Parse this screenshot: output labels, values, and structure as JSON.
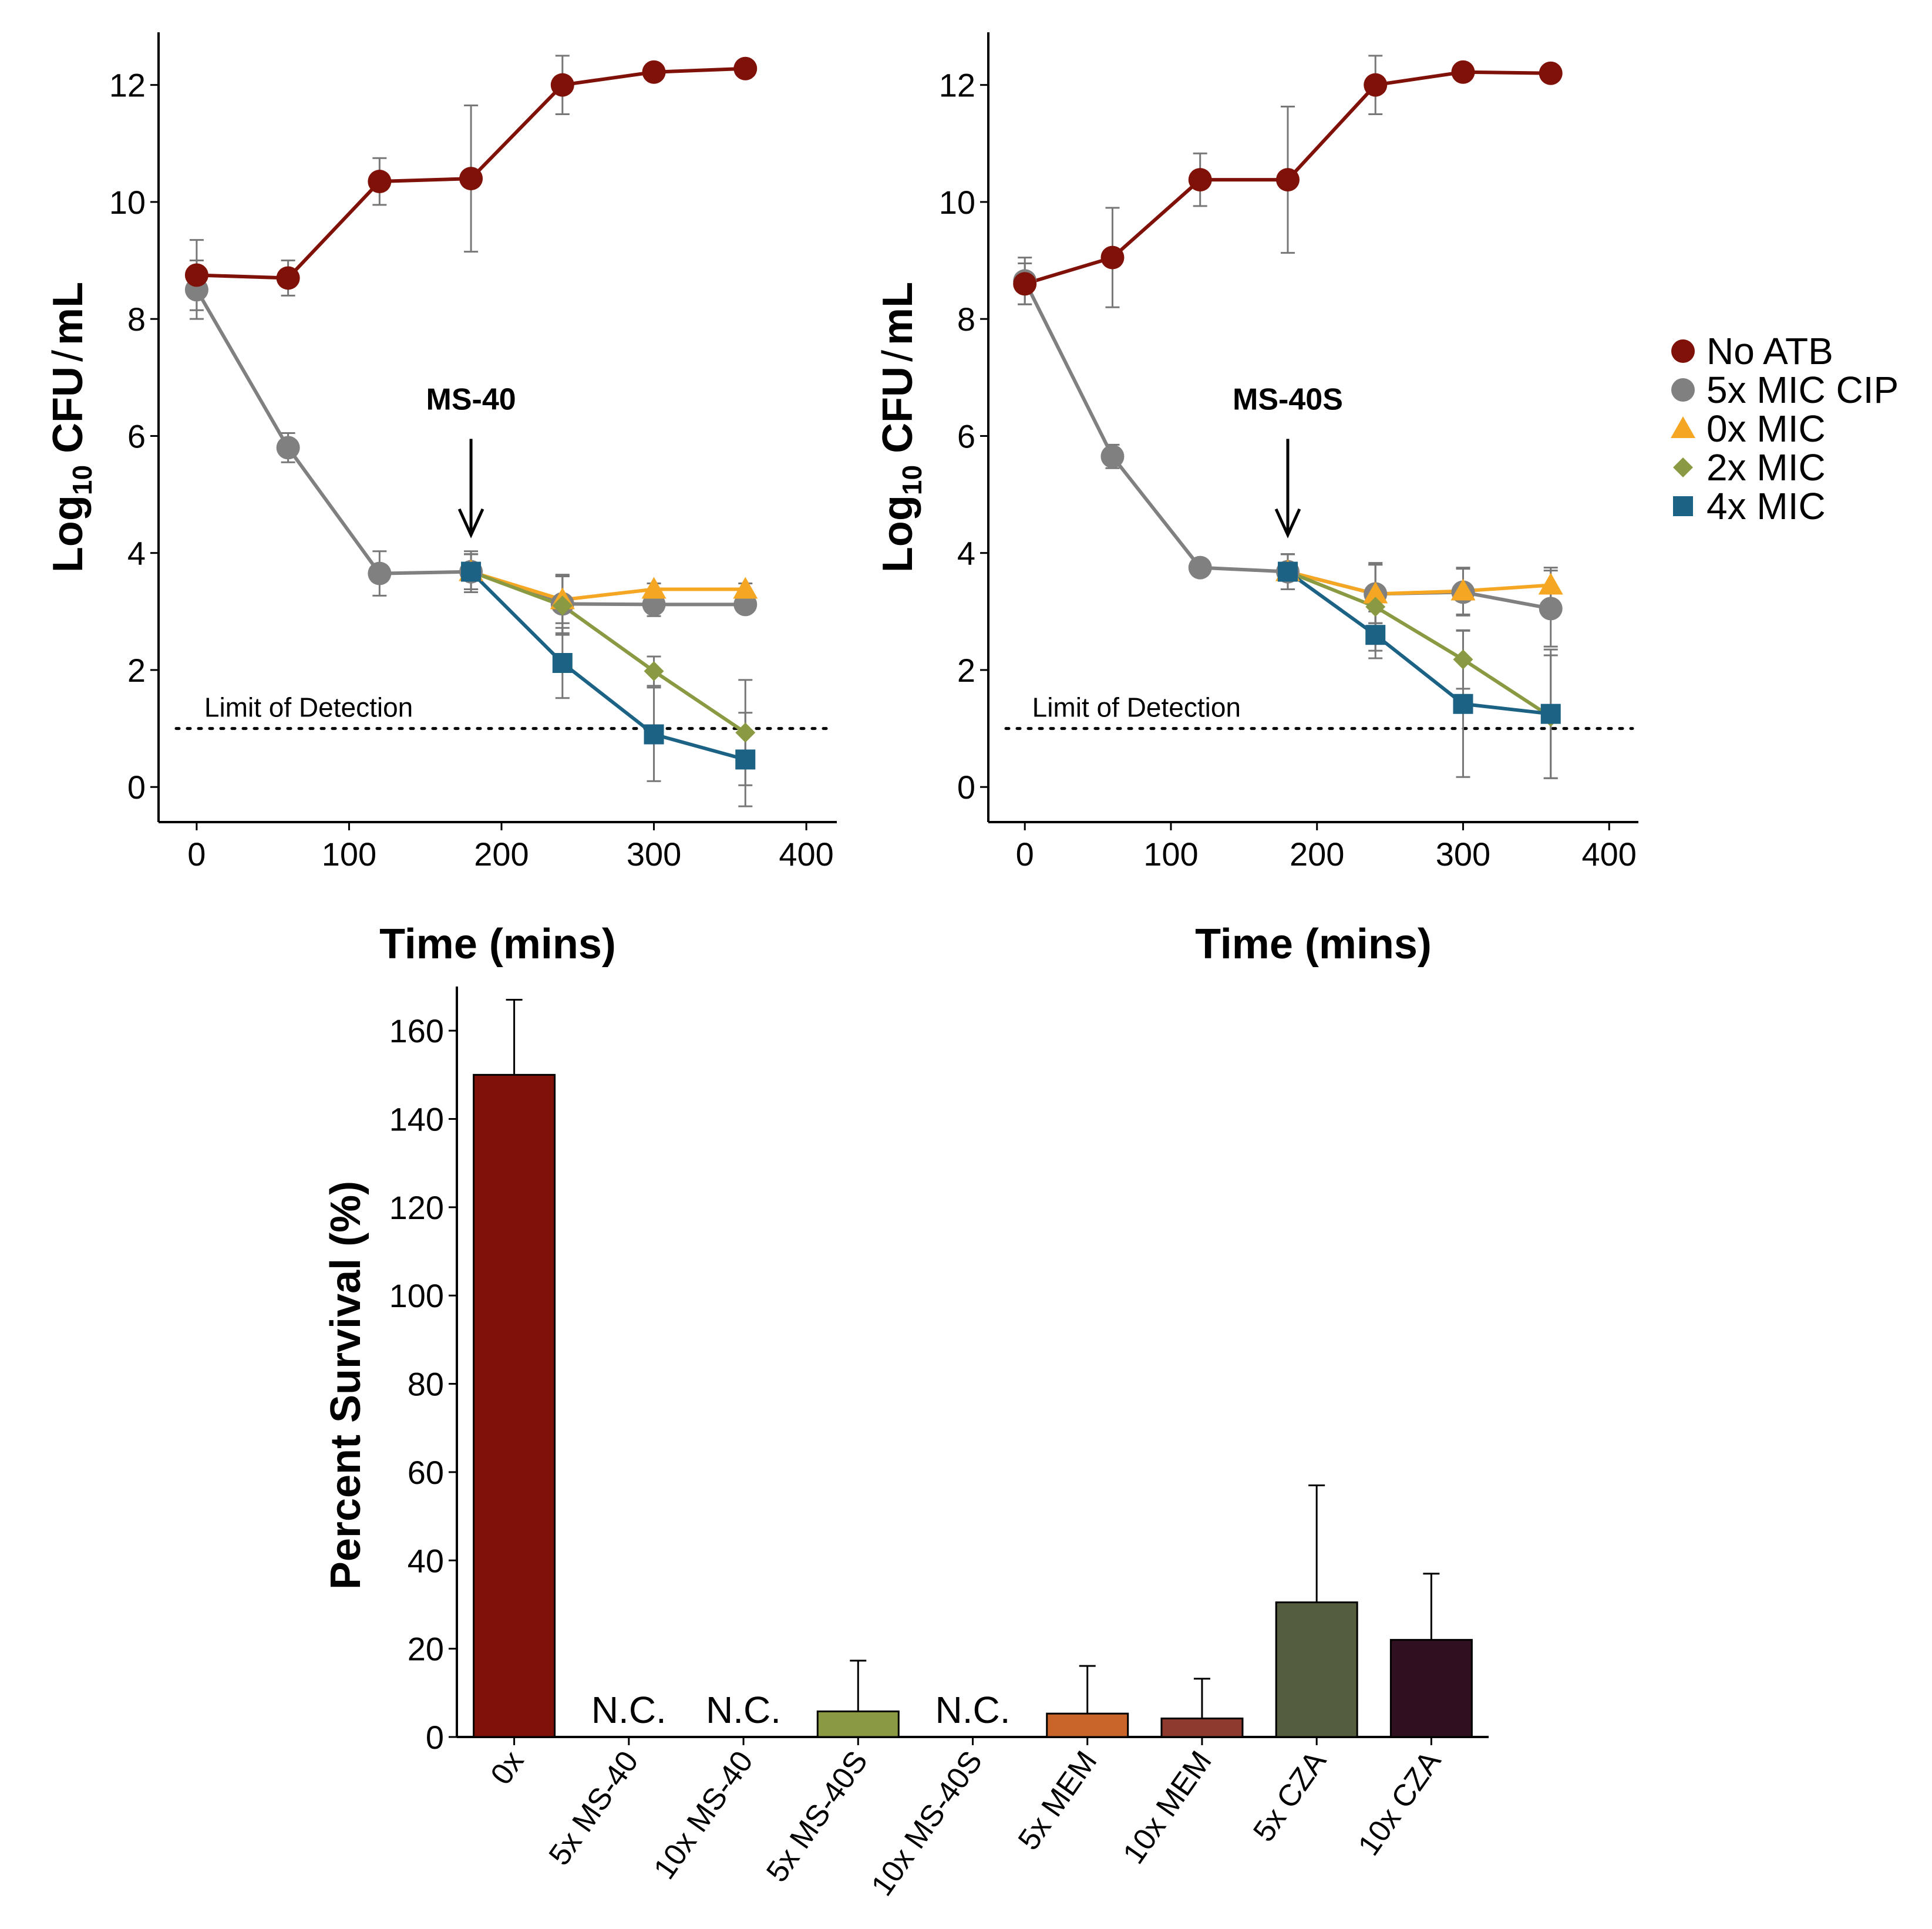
{
  "colors": {
    "no_atb": "#7F1108",
    "cip": "#808080",
    "mic0": "#F5A623",
    "mic2": "#8A9A42",
    "mic4": "#1B6285",
    "errorbar": "#777777"
  },
  "legend": {
    "items": [
      {
        "label": "No ATB",
        "key": "no_atb",
        "marker": "circle"
      },
      {
        "label": "5x MIC CIP",
        "key": "cip",
        "marker": "circle"
      },
      {
        "label": "0x MIC",
        "key": "mic0",
        "marker": "triangle"
      },
      {
        "label": "2x MIC",
        "key": "mic2",
        "marker": "diamond"
      },
      {
        "label": "4x MIC",
        "key": "mic4",
        "marker": "square"
      }
    ]
  },
  "chart_data": [
    {
      "type": "line",
      "xlabel": "Time (mins)",
      "ylabel_parts": {
        "main": "Log",
        "sub": "10",
        "rest": " CFU",
        "slash": "/",
        "unit": "mL"
      },
      "xlim": [
        -25,
        420
      ],
      "ylim": [
        -0.6,
        12.9
      ],
      "xticks": [
        0,
        100,
        200,
        300,
        400
      ],
      "yticks": [
        0,
        2,
        4,
        6,
        8,
        10,
        12
      ],
      "limit_of_detection": {
        "y": 1.0,
        "label": "Limit of Detection"
      },
      "arrow": {
        "x": 180,
        "label": "MS-40"
      },
      "series": [
        {
          "name": "No ATB",
          "key": "no_atb",
          "marker": "circle",
          "x": [
            0,
            60,
            120,
            180,
            240,
            300,
            360
          ],
          "y": [
            8.75,
            8.7,
            10.35,
            10.4,
            12.0,
            12.22,
            12.28
          ],
          "err": [
            0.6,
            0.3,
            0.4,
            1.25,
            0.5,
            0.0,
            0.0
          ]
        },
        {
          "name": "5x MIC CIP",
          "key": "cip",
          "marker": "circle",
          "x": [
            0,
            60,
            120,
            180,
            240,
            300,
            360
          ],
          "y": [
            8.5,
            5.8,
            3.65,
            3.68,
            3.13,
            3.12,
            3.12
          ],
          "err": [
            0.5,
            0.25,
            0.38,
            0.35,
            0.5,
            0.2,
            0.05
          ]
        },
        {
          "name": "0x MIC",
          "key": "mic0",
          "marker": "triangle",
          "x": [
            180,
            240,
            300,
            360
          ],
          "y": [
            3.68,
            3.2,
            3.38,
            3.38
          ],
          "err": [
            0.3,
            0.4,
            0.1,
            0.1
          ]
        },
        {
          "name": "2x MIC",
          "key": "mic2",
          "marker": "diamond",
          "x": [
            180,
            240,
            300,
            360
          ],
          "y": [
            3.68,
            3.1,
            1.98,
            0.93
          ],
          "err": [
            0.3,
            0.5,
            0.25,
            0.9
          ]
        },
        {
          "name": "4x MIC",
          "key": "mic4",
          "marker": "square",
          "x": [
            180,
            240,
            300,
            360
          ],
          "y": [
            3.68,
            2.12,
            0.9,
            0.47
          ],
          "err": [
            0.3,
            0.6,
            0.8,
            0.8
          ]
        }
      ]
    },
    {
      "type": "line",
      "xlabel": "Time (mins)",
      "ylabel_parts": {
        "main": "Log",
        "sub": "10",
        "rest": " CFU",
        "slash": "/",
        "unit": "mL"
      },
      "xlim": [
        -25,
        420
      ],
      "ylim": [
        -0.6,
        12.9
      ],
      "xticks": [
        0,
        100,
        200,
        300,
        400
      ],
      "yticks": [
        0,
        2,
        4,
        6,
        8,
        10,
        12
      ],
      "limit_of_detection": {
        "y": 1.0,
        "label": "Limit of Detection"
      },
      "arrow": {
        "x": 180,
        "label": "MS-40S"
      },
      "series": [
        {
          "name": "No ATB",
          "key": "no_atb",
          "marker": "circle",
          "x": [
            0,
            60,
            120,
            180,
            240,
            300,
            360
          ],
          "y": [
            8.6,
            9.05,
            10.38,
            10.38,
            12.0,
            12.22,
            12.2
          ],
          "err": [
            0.35,
            0.85,
            0.45,
            1.25,
            0.5,
            0.0,
            0.0
          ]
        },
        {
          "name": "5x MIC CIP",
          "key": "cip",
          "marker": "circle",
          "x": [
            0,
            60,
            120,
            180,
            240,
            300,
            360
          ],
          "y": [
            8.65,
            5.65,
            3.75,
            3.68,
            3.3,
            3.33,
            3.05
          ],
          "err": [
            0.4,
            0.2,
            0.05,
            0.3,
            0.5,
            0.4,
            0.65
          ]
        },
        {
          "name": "0x MIC",
          "key": "mic0",
          "marker": "triangle",
          "x": [
            180,
            240,
            300,
            360
          ],
          "y": [
            3.68,
            3.3,
            3.35,
            3.45
          ],
          "err": [
            0.3,
            0.5,
            0.4,
            0.3
          ]
        },
        {
          "name": "2x MIC",
          "key": "mic2",
          "marker": "diamond",
          "x": [
            180,
            240,
            300,
            360
          ],
          "y": [
            3.68,
            3.08,
            2.18,
            1.2
          ],
          "err": [
            0.3,
            0.75,
            0.5,
            1.05
          ]
        },
        {
          "name": "4x MIC",
          "key": "mic4",
          "marker": "square",
          "x": [
            180,
            240,
            300,
            360
          ],
          "y": [
            3.68,
            2.6,
            1.42,
            1.25
          ],
          "err": [
            0.3,
            0.4,
            1.25,
            1.1
          ]
        }
      ]
    },
    {
      "type": "bar",
      "ylabel": "Percent Survival (%)",
      "ylim": [
        0,
        170
      ],
      "yticks": [
        0,
        20,
        40,
        60,
        80,
        100,
        120,
        140,
        160
      ],
      "categories": [
        "0x",
        "5x MS-40",
        "10x MS-40",
        "5x MS-40S",
        "10x MS-40S",
        "5x MEM",
        "10x MEM",
        "5x CZA",
        "10x CZA"
      ],
      "values": [
        150,
        null,
        null,
        5.8,
        null,
        5.3,
        4.2,
        30.5,
        22
      ],
      "err": [
        17,
        null,
        null,
        11.5,
        null,
        10.8,
        9.0,
        26.5,
        15
      ],
      "not_calculated_label": "N.C.",
      "bar_colors": [
        "#7F1108",
        "#8A9A42",
        "#8A9A42",
        "#8A9A42",
        "#8A9A42",
        "#C9652A",
        "#8E3A2F",
        "#555D3F",
        "#301020"
      ]
    }
  ]
}
